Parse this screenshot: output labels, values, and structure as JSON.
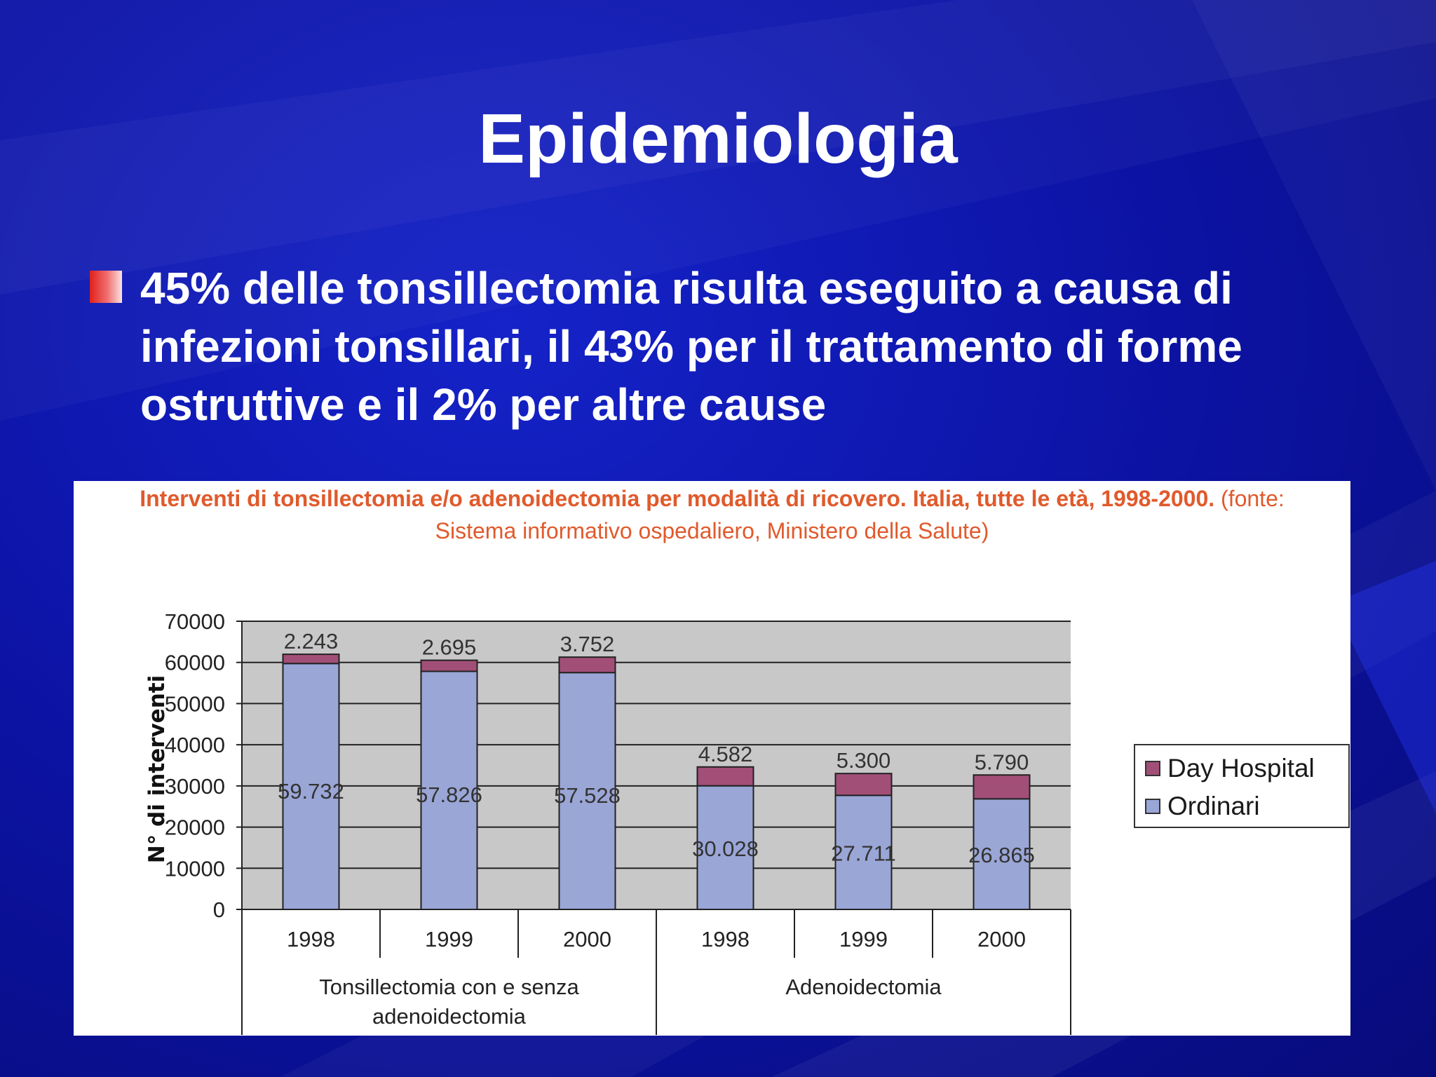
{
  "slide": {
    "title": "Epidemiologia",
    "bullet": "45% delle tonsillectomia risulta eseguito a causa di infezioni tonsillari, il 43% per il trattamento di forme ostruttive e il 2% per altre cause"
  },
  "colors": {
    "background": "#0d14a8",
    "bullet_marker": "#e0201a",
    "chart_title": "#e05a2c",
    "plot_area": "#c8c8c8",
    "ordinari": "#9aa6d6",
    "day_hospital": "#a24f78"
  },
  "chart_data": {
    "type": "bar",
    "stacked": true,
    "title_bold": "Interventi di tonsillectomia e/o adenoidectomia per modalità di ricovero. Italia, tutte le età, 1998-2000.",
    "title_normal": "(fonte: Sistema informativo ospedaliero, Ministero della Salute)",
    "ylabel": "N° di interventi",
    "ylim": [
      0,
      70000
    ],
    "yticks": [
      0,
      10000,
      20000,
      30000,
      40000,
      50000,
      60000,
      70000
    ],
    "categories": [
      "1998",
      "1999",
      "2000",
      "1998",
      "1999",
      "2000"
    ],
    "groups": [
      {
        "label": "Tonsillectomia con e senza adenoidectomia",
        "size": 3
      },
      {
        "label": "Adenoidectomia",
        "size": 3
      }
    ],
    "series": [
      {
        "name": "Ordinari",
        "values": [
          59732,
          57826,
          57528,
          30028,
          27711,
          26865
        ],
        "labels": [
          "59.732",
          "57.826",
          "57.528",
          "30.028",
          "27.711",
          "26.865"
        ]
      },
      {
        "name": "Day Hospital",
        "values": [
          2243,
          2695,
          3752,
          4582,
          5300,
          5790
        ],
        "labels": [
          "2.243",
          "2.695",
          "3.752",
          "4.582",
          "5.300",
          "5.790"
        ]
      }
    ],
    "legend_position": "right",
    "grid": true
  }
}
